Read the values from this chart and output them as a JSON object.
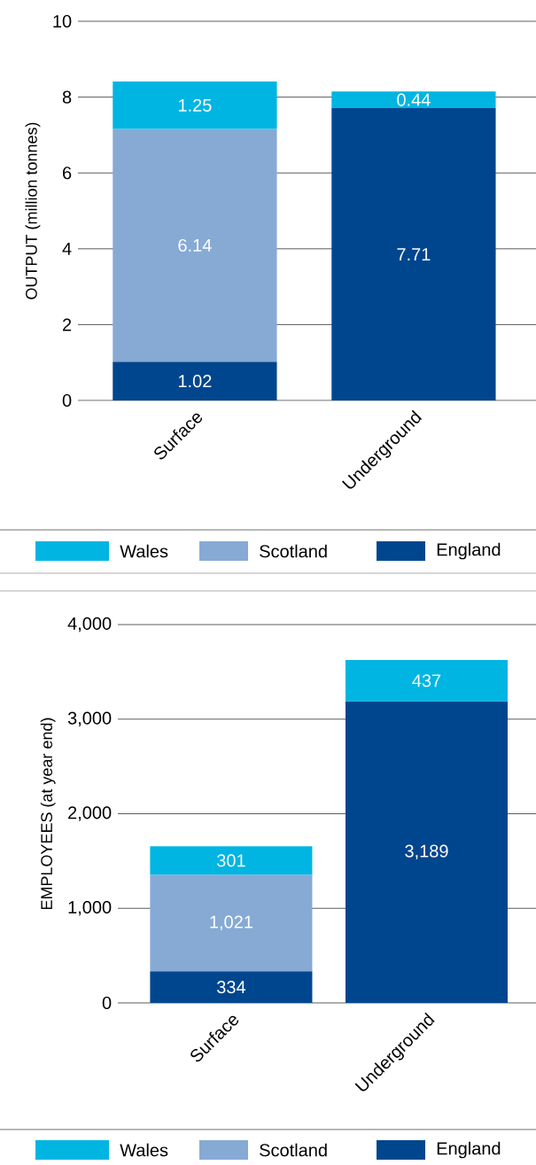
{
  "chart_data": [
    {
      "type": "bar",
      "stacked": true,
      "ylabel": "OUTPUT (million tonnes)",
      "categories": [
        "Surface",
        "Underground"
      ],
      "ylim": [
        0,
        10
      ],
      "yticks": [
        0,
        2,
        4,
        6,
        8,
        10
      ],
      "grid": "y",
      "legend": "bottom",
      "series": [
        {
          "name": "England",
          "color": "#00468e",
          "values": [
            1.02,
            7.71
          ],
          "value_labels": [
            "1.02",
            "7.71"
          ]
        },
        {
          "name": "Scotland",
          "color": "#86aad4",
          "values": [
            6.14,
            null
          ],
          "value_labels": [
            "6.14",
            null
          ]
        },
        {
          "name": "Wales",
          "color": "#00b5e2",
          "values": [
            1.25,
            0.44
          ],
          "value_labels": [
            "1.25",
            "0.44"
          ]
        }
      ]
    },
    {
      "type": "bar",
      "stacked": true,
      "ylabel": "EMPLOYEES (at year end)",
      "categories": [
        "Surface",
        "Underground"
      ],
      "ylim": [
        0,
        4000
      ],
      "yticks": [
        0,
        {
          "value": 1000,
          "label": "1,000"
        },
        {
          "value": 2000,
          "label": "2,000"
        },
        {
          "value": 3000,
          "label": "3,000"
        },
        {
          "value": 4000,
          "label": "4,000"
        }
      ],
      "grid": "y",
      "legend": "bottom",
      "series": [
        {
          "name": "England",
          "color": "#00468e",
          "values": [
            334,
            3189
          ],
          "value_labels": [
            "334",
            "3,189"
          ]
        },
        {
          "name": "Scotland",
          "color": "#86aad4",
          "values": [
            1021,
            null
          ],
          "value_labels": [
            "1,021",
            null
          ]
        },
        {
          "name": "Wales",
          "color": "#00b5e2",
          "values": [
            301,
            437
          ],
          "value_labels": [
            "301",
            "437"
          ]
        }
      ]
    }
  ]
}
